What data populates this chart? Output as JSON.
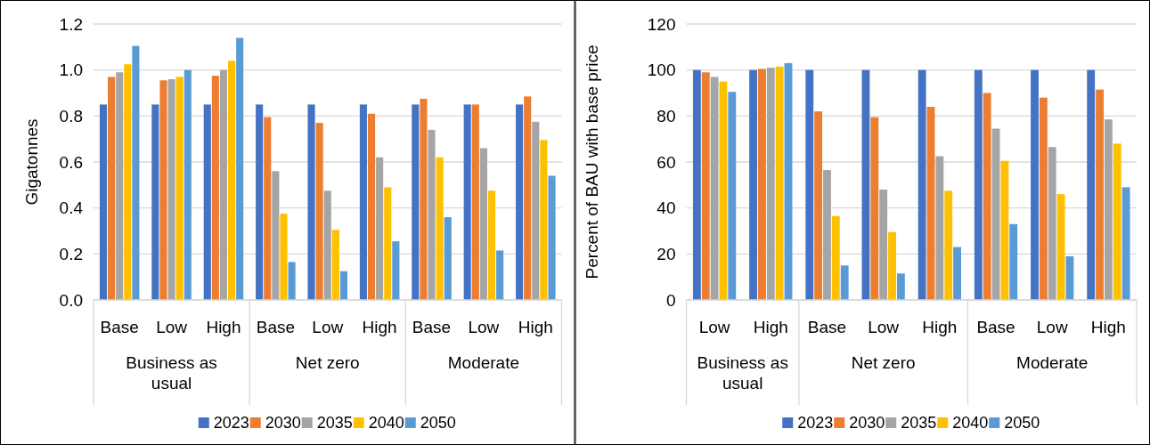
{
  "chart_data": [
    {
      "type": "bar",
      "ylabel": "Gigatonnes",
      "categories": [
        "Base",
        "Low",
        "High",
        "Base",
        "Low",
        "High",
        "Base",
        "Low",
        "High"
      ],
      "annotations": [
        "Business as usual",
        "Net zero",
        "Moderate"
      ],
      "ylim": [
        0,
        1.2
      ],
      "yticks": [
        {
          "value": 0,
          "label": "0.0"
        },
        {
          "value": 0.2,
          "label": "0.2"
        },
        {
          "value": 0.4,
          "label": "0.4"
        },
        {
          "value": 0.6,
          "label": "0.6"
        },
        {
          "value": 0.8,
          "label": "0.8"
        },
        {
          "value": 1,
          "label": "1.0"
        },
        {
          "value": 1.2,
          "label": "1.2"
        }
      ],
      "grid": "y",
      "legend": "bottom",
      "series": [
        {
          "name": "2023",
          "color": "#4472c4",
          "values": [
            0.85,
            0.85,
            0.85,
            0.85,
            0.85,
            0.85,
            0.85,
            0.85,
            0.85
          ]
        },
        {
          "name": "2030",
          "color": "#ed7d31",
          "values": [
            0.97,
            0.955,
            0.975,
            0.795,
            0.77,
            0.81,
            0.875,
            0.85,
            0.885
          ]
        },
        {
          "name": "2035",
          "color": "#a5a5a5",
          "values": [
            0.99,
            0.96,
            1.0,
            0.56,
            0.475,
            0.62,
            0.74,
            0.66,
            0.775
          ]
        },
        {
          "name": "2040",
          "color": "#ffc000",
          "values": [
            1.025,
            0.97,
            1.04,
            0.375,
            0.305,
            0.49,
            0.62,
            0.475,
            0.695
          ]
        },
        {
          "name": "2050",
          "color": "#5b9bd5",
          "values": [
            1.105,
            1.0,
            1.14,
            0.165,
            0.125,
            0.255,
            0.36,
            0.215,
            0.54
          ]
        }
      ]
    },
    {
      "type": "bar",
      "ylabel": "Percent of BAU with base price",
      "categories": [
        "Low",
        "High",
        "Base",
        "Low",
        "High",
        "Base",
        "Low",
        "High"
      ],
      "annotations": [
        "Business as usual",
        "Net zero",
        "Moderate"
      ],
      "ylim": [
        0,
        120
      ],
      "yticks": [
        0,
        20,
        40,
        60,
        80,
        100,
        120
      ],
      "grid": "y",
      "legend": "bottom",
      "series": [
        {
          "name": "2023",
          "color": "#4472c4",
          "values": [
            100,
            100,
            100,
            100,
            100,
            100,
            100,
            100
          ]
        },
        {
          "name": "2030",
          "color": "#ed7d31",
          "values": [
            99,
            100.5,
            82,
            79.5,
            84,
            90,
            88,
            91.5
          ]
        },
        {
          "name": "2035",
          "color": "#a5a5a5",
          "values": [
            97,
            101,
            56.5,
            48,
            62.5,
            74.5,
            66.5,
            78.5
          ]
        },
        {
          "name": "2040",
          "color": "#ffc000",
          "values": [
            95,
            101.5,
            36.5,
            29.5,
            47.5,
            60.5,
            46,
            68
          ]
        },
        {
          "name": "2050",
          "color": "#5b9bd5",
          "values": [
            90.5,
            103,
            15,
            11.5,
            23,
            33,
            19,
            49
          ]
        }
      ]
    }
  ]
}
